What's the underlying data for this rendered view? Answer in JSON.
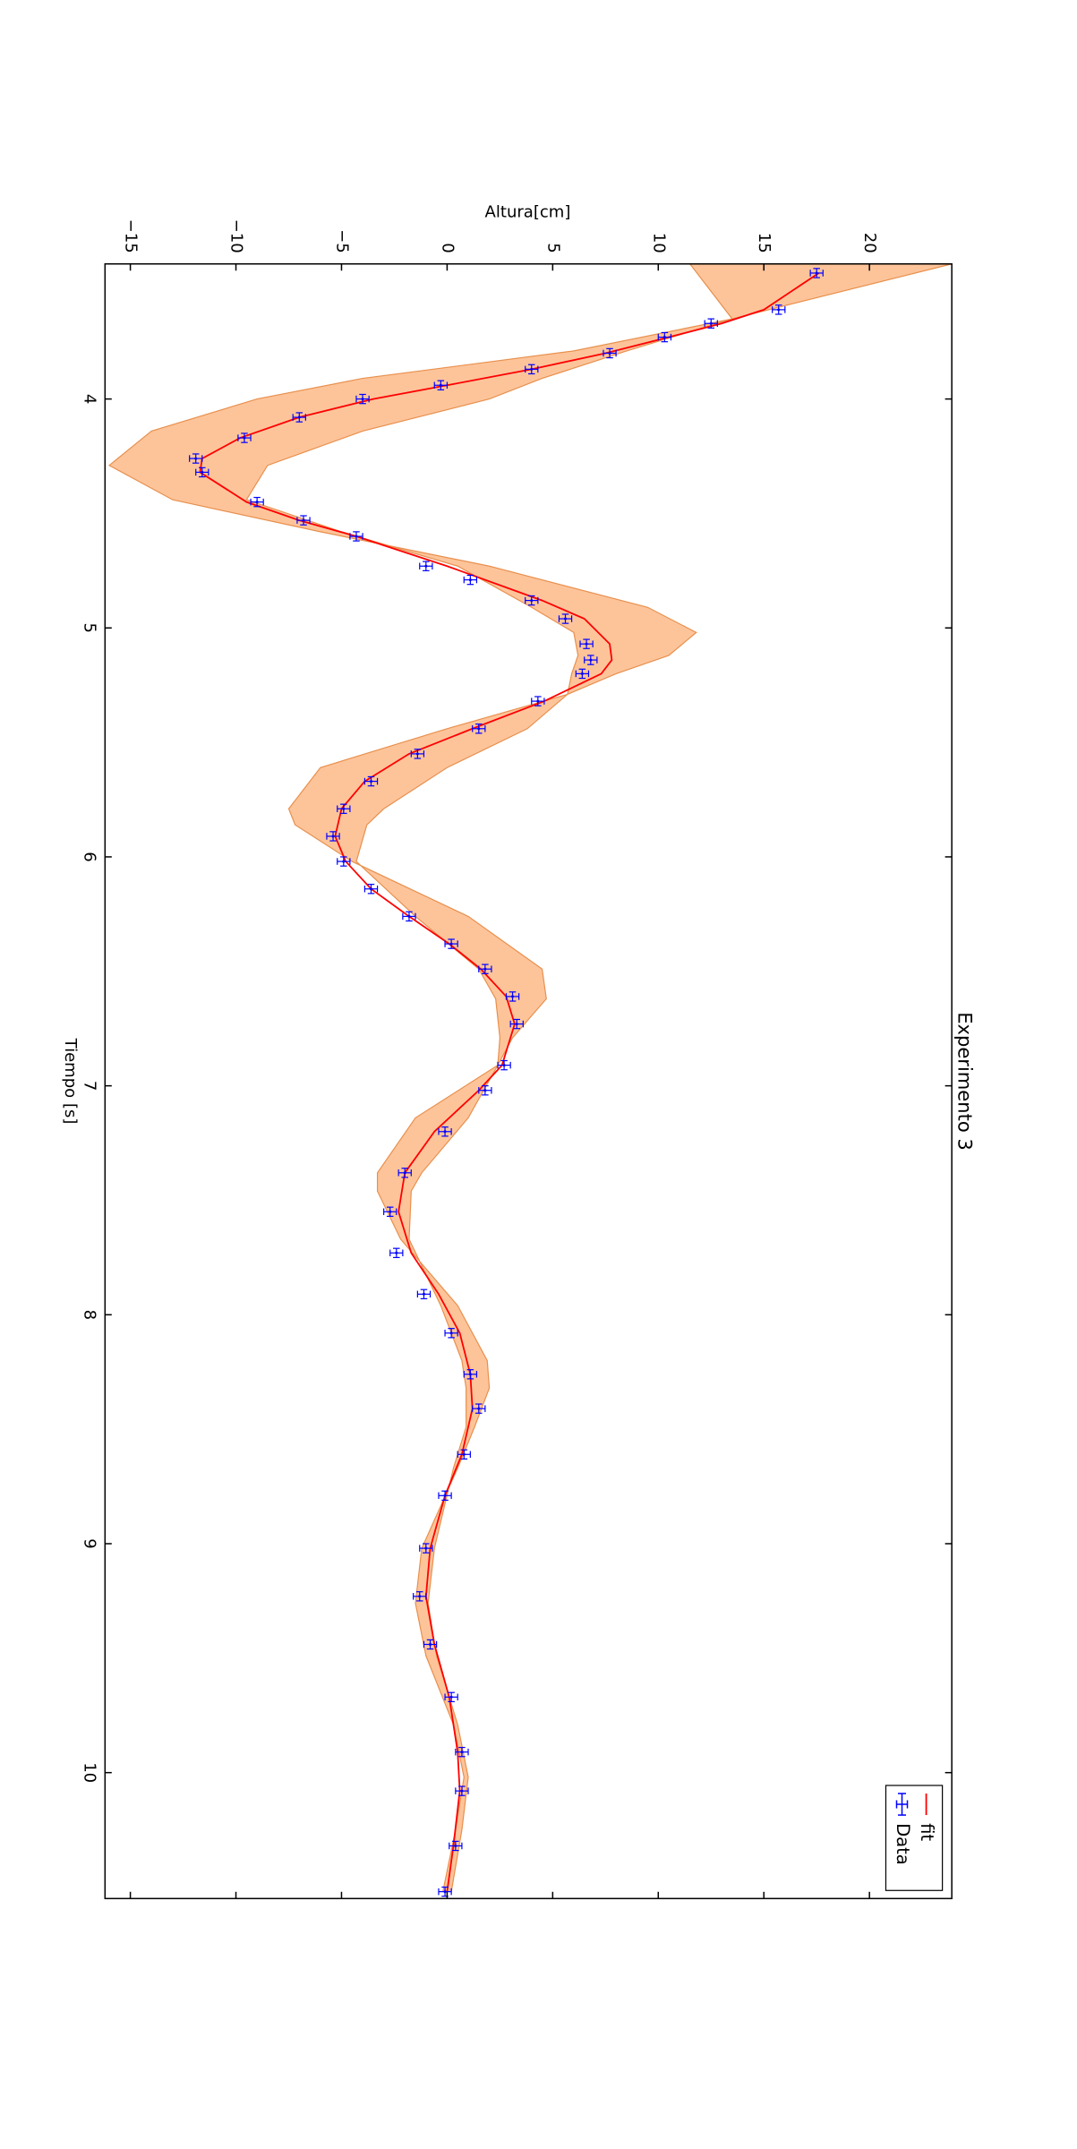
{
  "chart_data": {
    "type": "line",
    "title": "Experimento 3",
    "xlabel": "Tiempo [s]",
    "ylabel": "Altura[cm]",
    "xlim": [
      3.41,
      10.55
    ],
    "ylim": [
      -16.2,
      23.9
    ],
    "xticks": [
      4,
      5,
      6,
      7,
      8,
      9,
      10
    ],
    "yticks": [
      {
        "value": -15,
        "label": "−15"
      },
      {
        "value": -10,
        "label": "−10"
      },
      {
        "value": -5,
        "label": "−5"
      },
      0,
      5,
      10,
      15,
      20
    ],
    "legend": "upper right",
    "series": [
      {
        "type": "fill_between",
        "color": "#fdc49a",
        "edgecolor": "#e8904e",
        "x": [
          3.41,
          3.65,
          3.79,
          3.91,
          4.0,
          4.14,
          4.29,
          4.44,
          4.58,
          4.73,
          4.91,
          5.02,
          5.12,
          5.2,
          5.29,
          5.44,
          5.61,
          5.79,
          5.86,
          6.02,
          6.26,
          6.49,
          6.62,
          6.79,
          6.91,
          7.14,
          7.38,
          7.46,
          7.67,
          7.96,
          8.2,
          8.32,
          8.49,
          8.67,
          9.02,
          9.26,
          9.49,
          9.79,
          10.02,
          10.25,
          10.52
        ],
        "y1": [
          23.9,
          13.5,
          6,
          -4,
          -9,
          -14,
          -16,
          -13,
          -6,
          2,
          9.5,
          11.8,
          10.5,
          8,
          5.7,
          0,
          -6,
          -7.5,
          -7.2,
          -4.5,
          1,
          4.5,
          4.7,
          3.1,
          2.4,
          -1.5,
          -3.3,
          -3.3,
          -2.2,
          0.5,
          1.9,
          2.0,
          1.3,
          0.5,
          -1.2,
          -1.5,
          -1.0,
          0.3,
          0.8,
          0.4,
          -0.2
        ],
        "y2": [
          11.5,
          13.5,
          8.5,
          4.5,
          2,
          -4,
          -8.5,
          -9.5,
          -5,
          0.5,
          4,
          6,
          6.2,
          5.9,
          5.7,
          3.8,
          0,
          -3,
          -3.8,
          -4.3,
          -1.5,
          1.5,
          2.3,
          2.5,
          2.4,
          1.0,
          -1.2,
          -1.7,
          -1.8,
          -0.3,
          0.7,
          0.9,
          0.9,
          0.3,
          -0.6,
          -0.9,
          -0.5,
          0.5,
          1.0,
          0.7,
          0.2
        ]
      },
      {
        "type": "line",
        "name": "fit",
        "color": "#ff0000",
        "x": [
          3.45,
          3.61,
          3.67,
          3.73,
          3.8,
          3.87,
          3.94,
          4.0,
          4.08,
          4.17,
          4.26,
          4.32,
          4.45,
          4.53,
          4.6,
          4.73,
          4.88,
          4.96,
          5.07,
          5.14,
          5.2,
          5.32,
          5.44,
          5.55,
          5.67,
          5.79,
          5.91,
          6.02,
          6.14,
          6.26,
          6.38,
          6.49,
          6.61,
          6.73,
          6.91,
          7.02,
          7.2,
          7.38,
          7.55,
          7.73,
          7.91,
          8.08,
          8.26,
          8.41,
          8.61,
          8.79,
          9.02,
          9.23,
          9.44,
          9.67,
          9.91,
          10.08,
          10.32,
          10.52
        ],
        "values": [
          17.6,
          15.0,
          13.0,
          10.5,
          7.5,
          4,
          0,
          -3.5,
          -7,
          -9.8,
          -11.6,
          -11.7,
          -9.5,
          -7,
          -4.3,
          0,
          4.5,
          6.5,
          7.7,
          7.8,
          7.3,
          4.6,
          1.2,
          -1.8,
          -3.9,
          -5,
          -5.3,
          -4.8,
          -3.6,
          -1.8,
          0.1,
          1.6,
          2.8,
          3.2,
          2.6,
          1.5,
          -0.6,
          -2.0,
          -2.3,
          -1.7,
          -0.4,
          0.6,
          1.1,
          1.2,
          0.7,
          -0.1,
          -0.8,
          -1.0,
          -0.6,
          0.1,
          0.5,
          0.6,
          0.3,
          0.0
        ]
      },
      {
        "type": "errorbar",
        "name": "Data",
        "color": "#0000ff",
        "xerr": 0.02,
        "yerr": 0.3,
        "x": [
          3.45,
          3.61,
          3.67,
          3.73,
          3.8,
          3.87,
          3.94,
          4.0,
          4.08,
          4.17,
          4.26,
          4.32,
          4.45,
          4.53,
          4.6,
          4.73,
          4.79,
          4.88,
          4.96,
          5.07,
          5.14,
          5.2,
          5.32,
          5.44,
          5.55,
          5.67,
          5.79,
          5.91,
          6.02,
          6.14,
          6.26,
          6.38,
          6.49,
          6.61,
          6.73,
          6.91,
          7.02,
          7.2,
          7.38,
          7.55,
          7.73,
          7.91,
          8.08,
          8.26,
          8.41,
          8.61,
          8.79,
          9.02,
          9.23,
          9.44,
          9.67,
          9.91,
          10.08,
          10.32,
          10.52
        ],
        "values": [
          17.5,
          15.7,
          12.5,
          10.3,
          7.7,
          4.0,
          -0.3,
          -4.0,
          -7.0,
          -9.6,
          -11.9,
          -11.6,
          -9.0,
          -6.8,
          -4.3,
          -1.0,
          1.1,
          4.0,
          5.6,
          6.6,
          6.8,
          6.4,
          4.3,
          1.5,
          -1.4,
          -3.6,
          -4.9,
          -5.4,
          -4.9,
          -3.6,
          -1.8,
          0.2,
          1.8,
          3.1,
          3.3,
          2.7,
          1.8,
          -0.1,
          -2.0,
          -2.7,
          -2.4,
          -1.1,
          0.2,
          1.1,
          1.5,
          0.8,
          -0.1,
          -1.0,
          -1.3,
          -0.8,
          0.2,
          0.7,
          0.7,
          0.4,
          -0.1
        ]
      }
    ]
  }
}
